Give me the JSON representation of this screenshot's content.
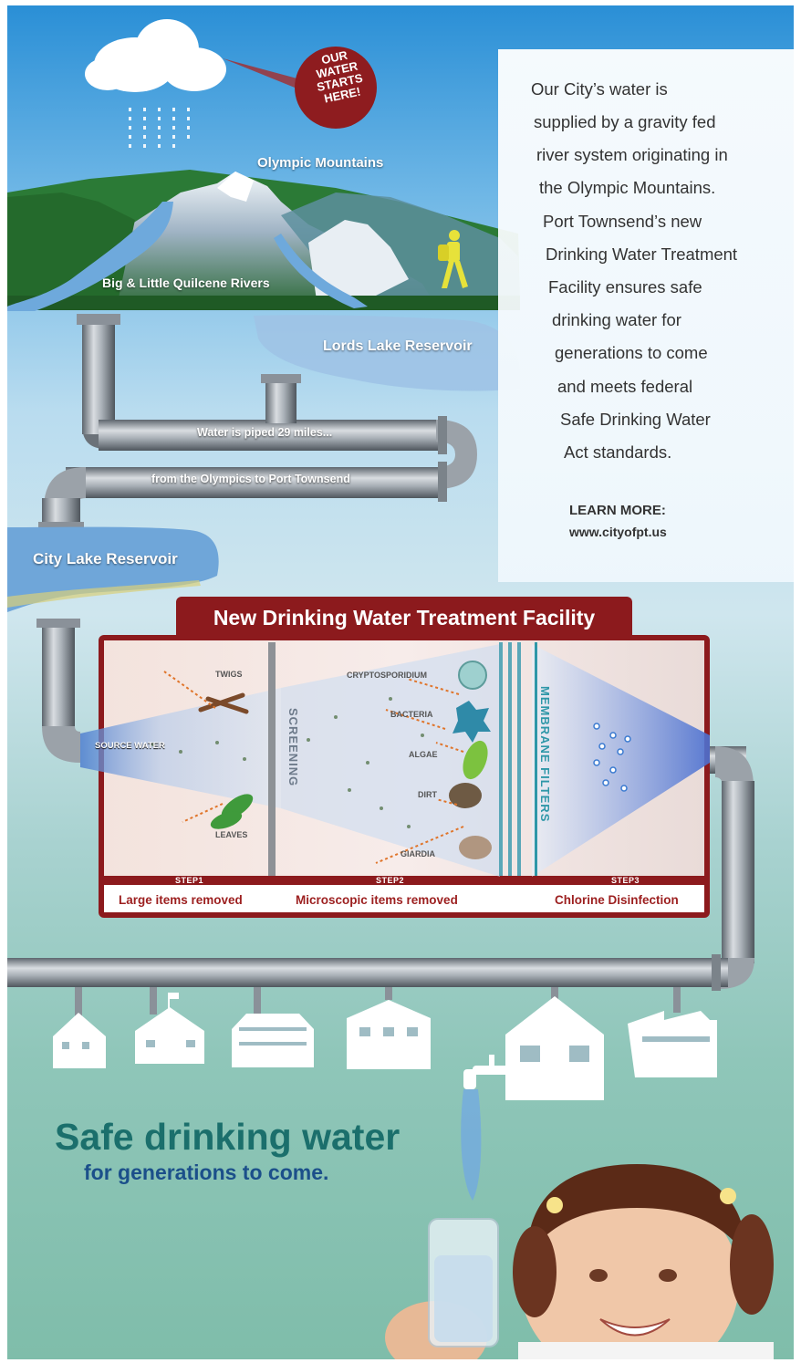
{
  "badge": {
    "lines": [
      "OUR",
      "WATER",
      "STARTS",
      "HERE!"
    ]
  },
  "labels": {
    "mountains": "Olympic Mountains",
    "rivers": "Big & Little Quilcene Rivers",
    "lords_lake": "Lords Lake Reservoir",
    "pipe_1": "Water is piped 29 miles...",
    "pipe_2": "from the Olympics to Port Townsend",
    "city_lake": "City Lake Reservoir"
  },
  "info": {
    "lines": [
      "Our City’s water is",
      "supplied by a gravity fed",
      "river system originating in",
      "the Olympic Mountains.",
      "Port Townsend’s new",
      "Drinking Water Treatment",
      "Facility ensures safe",
      "drinking water for",
      "generations to come",
      "and meets federal",
      "Safe Drinking Water",
      "Act standards."
    ],
    "learn_more": "LEARN MORE:",
    "website": "www.cityofpt.us"
  },
  "facility": {
    "title": "New Drinking Water Treatment Facility",
    "source_water": "SOURCE WATER",
    "screening": "SCREENING",
    "membrane": "MEMBRANE FILTERS",
    "items": {
      "twigs": "TWIGS",
      "leaves": "LEAVES",
      "crypto": "CRYPTOSPORIDIUM",
      "bacteria": "BACTERIA",
      "algae": "ALGAE",
      "dirt": "DIRT",
      "giardia": "GIARDIA"
    },
    "steps": [
      {
        "num": "STEP1",
        "label": "Large items removed"
      },
      {
        "num": "STEP2",
        "label": "Microscopic items removed"
      },
      {
        "num": "STEP3",
        "label": "Chlorine Disinfection"
      }
    ]
  },
  "tagline": {
    "headline": "Safe drinking water",
    "sub": "for generations to come."
  },
  "colors": {
    "facility_red": "#8c1a1d",
    "headline_teal": "#1b6f6c",
    "sub_blue": "#1b4f8a",
    "pipe_gray": "#8a9199"
  }
}
